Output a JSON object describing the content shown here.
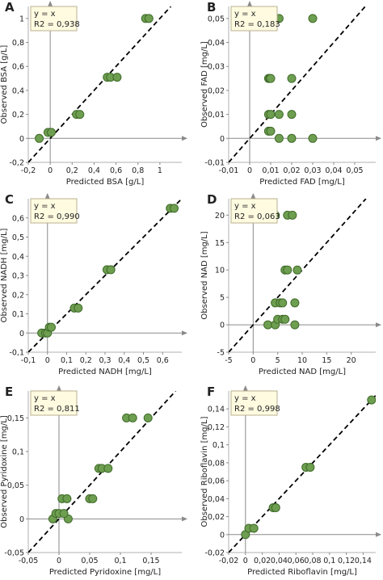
{
  "style": {
    "point_fill": "#6e9e50",
    "point_stroke": "#3f6b2a",
    "legend_fill": "#fffbe0",
    "legend_stroke": "#b8b090",
    "axis_color": "#8a8a8a",
    "frame_color": "#b0b0b0",
    "identity_line_color": "#000000"
  },
  "chart_data": [
    {
      "type": "scatter",
      "panel_label": "A",
      "xlabel": "Predicted BSA [g/L]",
      "ylabel": "Observed BSA [g/L]",
      "xlim": [
        -0.2,
        1.2
      ],
      "ylim": [
        -0.2,
        1.1
      ],
      "xticks": [
        -0.2,
        0,
        0.2,
        0.4,
        0.6,
        0.8,
        1
      ],
      "xtick_labels": [
        "-0,2",
        "0",
        "0,2",
        "0,4",
        "0,6",
        "0,8",
        "1"
      ],
      "yticks": [
        -0.2,
        0,
        0.2,
        0.4,
        0.6,
        0.8,
        1
      ],
      "ytick_labels": [
        "-0,2",
        "0",
        "0,2",
        "0,4",
        "0,6",
        "0,8",
        "1"
      ],
      "legend": {
        "line": "y = x",
        "r2": "R2 = 0,938"
      },
      "identity_line": true,
      "points": [
        [
          -0.1,
          0.0
        ],
        [
          -0.02,
          0.05
        ],
        [
          0.01,
          0.05
        ],
        [
          0.24,
          0.2
        ],
        [
          0.27,
          0.2
        ],
        [
          0.52,
          0.51
        ],
        [
          0.55,
          0.51
        ],
        [
          0.61,
          0.51
        ],
        [
          0.87,
          1.0
        ],
        [
          0.9,
          1.0
        ]
      ]
    },
    {
      "type": "scatter",
      "panel_label": "B",
      "xlabel": "Predicted FAD [mg/L]",
      "ylabel": "Observed FAD [mg/L]",
      "xlim": [
        -0.01,
        0.06
      ],
      "ylim": [
        -0.01,
        0.055
      ],
      "xticks": [
        -0.01,
        0,
        0.01,
        0.02,
        0.03,
        0.04,
        0.05
      ],
      "xtick_labels": [
        "-0,01",
        "0",
        "0,01",
        "0,02",
        "0,03",
        "0,04",
        "0,05"
      ],
      "yticks": [
        -0.01,
        0,
        0.01,
        0.02,
        0.03,
        0.04,
        0.05
      ],
      "ytick_labels": [
        "-0,01",
        "0",
        "0,01",
        "0,02",
        "0,03",
        "0,04",
        "0,05"
      ],
      "legend": {
        "line": "y = x",
        "r2": "R2 = 0,183"
      },
      "identity_line": true,
      "points": [
        [
          0.009,
          0.025
        ],
        [
          0.0095,
          0.025
        ],
        [
          0.01,
          0.025
        ],
        [
          0.02,
          0.025
        ],
        [
          0.009,
          0.01
        ],
        [
          0.01,
          0.01
        ],
        [
          0.014,
          0.01
        ],
        [
          0.02,
          0.01
        ],
        [
          0.009,
          0.003
        ],
        [
          0.01,
          0.003
        ],
        [
          0.014,
          0.0
        ],
        [
          0.02,
          0.0
        ],
        [
          0.03,
          0.0
        ],
        [
          0.014,
          0.05
        ],
        [
          0.03,
          0.05
        ]
      ]
    },
    {
      "type": "scatter",
      "panel_label": "C",
      "xlabel": "Predicted NADH [mg/L]",
      "ylabel": "Observed NADH [mg/L]",
      "xlim": [
        -0.1,
        0.7
      ],
      "ylim": [
        -0.1,
        0.7
      ],
      "xticks": [
        -0.1,
        0,
        0.1,
        0.2,
        0.3,
        0.4,
        0.5,
        0.6
      ],
      "xtick_labels": [
        "-0,1",
        "0",
        "0,1",
        "0,2",
        "0,3",
        "0,4",
        "0,5",
        "0,6"
      ],
      "yticks": [
        -0.1,
        0,
        0.1,
        0.2,
        0.3,
        0.4,
        0.5,
        0.6
      ],
      "ytick_labels": [
        "-0,1",
        "0",
        "0,1",
        "0,2",
        "0,3",
        "0,4",
        "0,5",
        "0,6"
      ],
      "legend": {
        "line": "y = x",
        "r2": "R2 = 0,990"
      },
      "identity_line": true,
      "points": [
        [
          -0.03,
          0.0
        ],
        [
          -0.01,
          0.0
        ],
        [
          0.0,
          0.0
        ],
        [
          0.01,
          0.03
        ],
        [
          0.02,
          0.03
        ],
        [
          0.14,
          0.13
        ],
        [
          0.16,
          0.13
        ],
        [
          0.31,
          0.33
        ],
        [
          0.33,
          0.33
        ],
        [
          0.64,
          0.65
        ],
        [
          0.66,
          0.65
        ]
      ]
    },
    {
      "type": "scatter",
      "panel_label": "D",
      "xlabel": "Predicted NAD [mg/L]",
      "ylabel": "Observed NAD [mg/L]",
      "xlim": [
        -5,
        25
      ],
      "ylim": [
        -5,
        23
      ],
      "xticks": [
        -5,
        0,
        5,
        10,
        15,
        20
      ],
      "xtick_labels": [
        "-5",
        "0",
        "5",
        "10",
        "15",
        "20"
      ],
      "yticks": [
        -5,
        0,
        5,
        10,
        15,
        20
      ],
      "ytick_labels": [
        "-5",
        "0",
        "5",
        "10",
        "15",
        "20"
      ],
      "legend": {
        "line": "y = x",
        "r2": "R2 = 0,063"
      },
      "identity_line": true,
      "points": [
        [
          4.5,
          20
        ],
        [
          7,
          20
        ],
        [
          8,
          20
        ],
        [
          6.5,
          10
        ],
        [
          7,
          10
        ],
        [
          9,
          10
        ],
        [
          4.5,
          4
        ],
        [
          5.5,
          4
        ],
        [
          6,
          4
        ],
        [
          8.5,
          4
        ],
        [
          3,
          0
        ],
        [
          4.5,
          0
        ],
        [
          5,
          1
        ],
        [
          6,
          1
        ],
        [
          6.5,
          1
        ],
        [
          8.5,
          0
        ]
      ]
    },
    {
      "type": "scatter",
      "panel_label": "E",
      "xlabel": "Predicted Pyridoxine [mg/L]",
      "ylabel": "Observed Pyridoxine [mg/L]",
      "xlim": [
        -0.05,
        0.2
      ],
      "ylim": [
        -0.05,
        0.19
      ],
      "xticks": [
        -0.05,
        0,
        0.05,
        0.1,
        0.15
      ],
      "xtick_labels": [
        "-0,05",
        "0",
        "0,05",
        "0,1",
        "0,15"
      ],
      "yticks": [
        -0.05,
        0,
        0.05,
        0.1,
        0.15
      ],
      "ytick_labels": [
        "-0,05",
        "0",
        "0,05",
        "0,1",
        "0,15"
      ],
      "legend": {
        "line": "y = x",
        "r2": "R2 = 0,811"
      },
      "identity_line": true,
      "points": [
        [
          -0.01,
          0.0
        ],
        [
          -0.005,
          0.008
        ],
        [
          0.0,
          0.008
        ],
        [
          0.005,
          0.03
        ],
        [
          0.013,
          0.03
        ],
        [
          0.015,
          0.0
        ],
        [
          0.008,
          0.008
        ],
        [
          0.05,
          0.03
        ],
        [
          0.055,
          0.03
        ],
        [
          0.065,
          0.075
        ],
        [
          0.07,
          0.075
        ],
        [
          0.08,
          0.075
        ],
        [
          0.11,
          0.15
        ],
        [
          0.12,
          0.15
        ],
        [
          0.145,
          0.15
        ]
      ]
    },
    {
      "type": "scatter",
      "panel_label": "F",
      "xlabel": "Predicted Riboflavin [mg/L]",
      "ylabel": "Observed Riboflavin [mg/L]",
      "xlim": [
        -0.02,
        0.155
      ],
      "ylim": [
        -0.02,
        0.16
      ],
      "xticks": [
        -0.02,
        0,
        0.02,
        0.04,
        0.06,
        0.08,
        0.1,
        0.12,
        0.14
      ],
      "xtick_labels": [
        "-0,02",
        "0",
        "0,02",
        "0,04",
        "0,06",
        "0,08",
        "0,1",
        "0,12",
        "0,14"
      ],
      "yticks": [
        -0.02,
        0,
        0.02,
        0.04,
        0.06,
        0.08,
        0.1,
        0.12,
        0.14
      ],
      "ytick_labels": [
        "-0,02",
        "0",
        "0,02",
        "0,04",
        "0,06",
        "0,08",
        "0,1",
        "0,12",
        "0,14"
      ],
      "legend": {
        "line": "y = x",
        "r2": "R2 = 0,998"
      },
      "identity_line": true,
      "points": [
        [
          0.0,
          0.0
        ],
        [
          0.004,
          0.007
        ],
        [
          0.01,
          0.007
        ],
        [
          0.033,
          0.03
        ],
        [
          0.036,
          0.03
        ],
        [
          0.072,
          0.075
        ],
        [
          0.077,
          0.075
        ],
        [
          0.15,
          0.15
        ]
      ]
    }
  ]
}
